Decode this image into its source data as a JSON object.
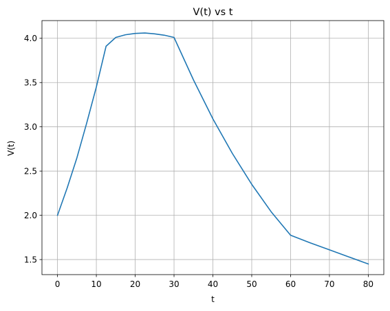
{
  "chart_data": {
    "type": "line",
    "title": "V(t) vs t",
    "xlabel": "t",
    "ylabel": "V(t)",
    "xlim": [
      -4,
      84
    ],
    "ylim": [
      1.33,
      4.2
    ],
    "xticks": [
      0,
      10,
      20,
      30,
      40,
      50,
      60,
      70,
      80
    ],
    "yticks": [
      1.5,
      2.0,
      2.5,
      3.0,
      3.5,
      4.0
    ],
    "xtick_labels": [
      "0",
      "10",
      "20",
      "30",
      "40",
      "50",
      "60",
      "70",
      "80"
    ],
    "ytick_labels": [
      "1.5",
      "2.0",
      "2.5",
      "3.0",
      "3.5",
      "4.0"
    ],
    "grid": true,
    "series": [
      {
        "color": "#1f77b4",
        "x": [
          0,
          2.5,
          5,
          7.5,
          10,
          12.5,
          15,
          17.5,
          20,
          22.5,
          25,
          27.5,
          30,
          35,
          40,
          45,
          50,
          55,
          60,
          65,
          70,
          75,
          80
        ],
        "y": [
          2.0,
          2.31,
          2.65,
          3.04,
          3.45,
          3.91,
          4.01,
          4.04,
          4.055,
          4.06,
          4.05,
          4.035,
          4.01,
          3.53,
          3.09,
          2.7,
          2.35,
          2.04,
          1.775,
          1.69,
          1.61,
          1.53,
          1.45
        ]
      }
    ]
  }
}
